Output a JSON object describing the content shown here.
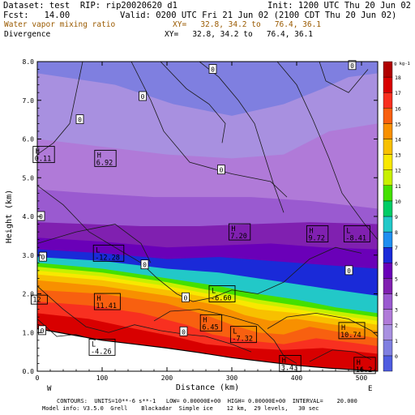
{
  "header": {
    "dataset": "Dataset: test  RIP: rip20020620 d1",
    "init": "Init: 1200 UTC Thu 20 Jun 02",
    "fcst": "Fcst:   14.00",
    "valid": "Valid: 0200 UTC Fri 21 Jun 02 (2100 CDT Thu 20 Jun 02)",
    "field1": "Water vapor mixing ratio",
    "field1_xy": "XY=   32.8, 34.2 to   76.4, 36.1",
    "field2": "Divergence",
    "field2_xy": "XY=   32.8, 34.2 to   76.4, 36.1"
  },
  "footer": {
    "line1": "CONTOURS:  UNITS=10**-6 s**-1   LOW= 0.00000E+00  HIGH= 0.00000E+00  INTERVAL=    20.000",
    "line2": "Model info: V3.5.0  Grell    Blackadar  Simple ice    12 km,  29 levels,   30 sec"
  },
  "colors": {
    "frame": "#000000",
    "band_palette": [
      "#4f5ce0",
      "#7f7fe0",
      "#a890e0",
      "#b07ad8",
      "#9a5ad0",
      "#8020b0",
      "#6a00b8",
      "#1a2ad8",
      "#1e8ef0",
      "#22c8c8",
      "#00cc66",
      "#44e000",
      "#c8f000",
      "#f8e800",
      "#f8c000",
      "#f89000",
      "#f86010",
      "#f83020",
      "#d80000",
      "#b00000"
    ]
  },
  "chart_data": {
    "type": "heatmap",
    "xlabel": "Distance  (km)",
    "ylabel": "Height  (km)",
    "xlim": [
      0,
      525
    ],
    "ylim": [
      0,
      8
    ],
    "x_ticks": [
      "0",
      "100",
      "200",
      "300",
      "400",
      "500"
    ],
    "y_ticks": [
      "0.0",
      "1.0",
      "2.0",
      "3.0",
      "4.0",
      "5.0",
      "6.0",
      "7.0",
      "8.0"
    ],
    "x_end_labels": {
      "left": "W",
      "right": "E"
    },
    "colorbar": {
      "unit": "g kg-1",
      "labels": [
        "0",
        "1",
        "2",
        "3",
        "4",
        "5",
        "6",
        "7",
        "8",
        "9",
        "10",
        "11",
        "12",
        "13",
        "14",
        "15",
        "16",
        "17",
        "18"
      ]
    },
    "mixing_ratio_layers": [
      {
        "value": 0,
        "top": [
          [
            0,
            8
          ],
          [
            525,
            8
          ]
        ]
      },
      {
        "value": 1,
        "top": [
          [
            0,
            7.7
          ],
          [
            120,
            7.4
          ],
          [
            210,
            6.9
          ],
          [
            300,
            6.6
          ],
          [
            380,
            6.9
          ],
          [
            440,
            7.3
          ],
          [
            480,
            7.6
          ],
          [
            525,
            7.7
          ]
        ]
      },
      {
        "value": 2,
        "top": [
          [
            0,
            6.0
          ],
          [
            100,
            5.8
          ],
          [
            200,
            5.6
          ],
          [
            300,
            5.5
          ],
          [
            380,
            5.6
          ],
          [
            450,
            6.2
          ],
          [
            525,
            6.4
          ]
        ]
      },
      {
        "value": 3,
        "top": [
          [
            0,
            4.7
          ],
          [
            80,
            4.6
          ],
          [
            180,
            4.5
          ],
          [
            260,
            4.5
          ],
          [
            330,
            4.5
          ],
          [
            420,
            4.4
          ],
          [
            525,
            4.2
          ]
        ]
      },
      {
        "value": 4,
        "top": [
          [
            0,
            3.85
          ],
          [
            80,
            3.8
          ],
          [
            160,
            3.75
          ],
          [
            250,
            3.75
          ],
          [
            330,
            3.8
          ],
          [
            420,
            3.85
          ],
          [
            525,
            3.8
          ]
        ]
      },
      {
        "value": 5,
        "top": [
          [
            0,
            3.45
          ],
          [
            100,
            3.35
          ],
          [
            200,
            3.2
          ],
          [
            280,
            3.25
          ],
          [
            360,
            3.3
          ],
          [
            440,
            3.2
          ],
          [
            525,
            3.15
          ]
        ]
      },
      {
        "value": 6,
        "top": [
          [
            0,
            3.15
          ],
          [
            100,
            3.05
          ],
          [
            200,
            2.9
          ],
          [
            280,
            2.95
          ],
          [
            360,
            2.85
          ],
          [
            440,
            2.75
          ],
          [
            525,
            2.65
          ]
        ]
      },
      {
        "value": 8,
        "top": [
          [
            0,
            2.95
          ],
          [
            100,
            2.85
          ],
          [
            200,
            2.65
          ],
          [
            280,
            2.55
          ],
          [
            360,
            2.35
          ],
          [
            440,
            2.15
          ],
          [
            525,
            1.95
          ]
        ]
      },
      {
        "value": 10,
        "top": [
          [
            0,
            2.8
          ],
          [
            100,
            2.65
          ],
          [
            200,
            2.4
          ],
          [
            280,
            2.2
          ],
          [
            340,
            2.0
          ],
          [
            400,
            1.85
          ],
          [
            460,
            1.65
          ],
          [
            525,
            1.5
          ]
        ]
      },
      {
        "value": 11,
        "top": [
          [
            0,
            2.7
          ],
          [
            100,
            2.55
          ],
          [
            200,
            2.3
          ],
          [
            280,
            2.05
          ],
          [
            340,
            1.85
          ],
          [
            400,
            1.7
          ],
          [
            460,
            1.55
          ],
          [
            525,
            1.4
          ]
        ]
      },
      {
        "value": 12,
        "top": [
          [
            0,
            2.6
          ],
          [
            100,
            2.45
          ],
          [
            200,
            2.2
          ],
          [
            280,
            1.95
          ],
          [
            340,
            1.75
          ],
          [
            400,
            1.6
          ],
          [
            460,
            1.45
          ],
          [
            525,
            1.3
          ]
        ]
      },
      {
        "value": 13,
        "top": [
          [
            0,
            2.5
          ],
          [
            100,
            2.35
          ],
          [
            200,
            2.1
          ],
          [
            280,
            1.85
          ],
          [
            340,
            1.6
          ],
          [
            400,
            1.5
          ],
          [
            460,
            1.35
          ],
          [
            525,
            1.2
          ]
        ]
      },
      {
        "value": 14,
        "top": [
          [
            0,
            2.35
          ],
          [
            100,
            2.2
          ],
          [
            200,
            1.95
          ],
          [
            280,
            1.7
          ],
          [
            320,
            1.45
          ],
          [
            360,
            1.3
          ],
          [
            400,
            1.35
          ],
          [
            460,
            1.2
          ],
          [
            525,
            1.05
          ]
        ]
      },
      {
        "value": 15,
        "top": [
          [
            0,
            2.1
          ],
          [
            100,
            2.0
          ],
          [
            200,
            1.75
          ],
          [
            260,
            1.45
          ],
          [
            300,
            1.2
          ],
          [
            340,
            1.0
          ],
          [
            380,
            0.95
          ],
          [
            420,
            1.15
          ],
          [
            470,
            1.0
          ],
          [
            525,
            0.85
          ]
        ]
      },
      {
        "value": 16,
        "top": [
          [
            0,
            1.8
          ],
          [
            80,
            1.7
          ],
          [
            160,
            1.5
          ],
          [
            230,
            1.2
          ],
          [
            270,
            0.95
          ],
          [
            320,
            0.8
          ],
          [
            380,
            0.7
          ],
          [
            430,
            0.85
          ],
          [
            480,
            0.75
          ],
          [
            525,
            0.65
          ]
        ]
      },
      {
        "value": 17,
        "top": [
          [
            0,
            1.5
          ],
          [
            80,
            1.35
          ],
          [
            150,
            1.1
          ],
          [
            210,
            0.9
          ],
          [
            260,
            0.7
          ],
          [
            320,
            0.6
          ],
          [
            380,
            0.55
          ],
          [
            440,
            0.6
          ],
          [
            525,
            0.45
          ]
        ]
      }
    ],
    "terrain": [
      [
        0,
        1.1
      ],
      [
        50,
        0.95
      ],
      [
        100,
        0.8
      ],
      [
        150,
        0.7
      ],
      [
        200,
        0.6
      ],
      [
        250,
        0.48
      ],
      [
        300,
        0.35
      ],
      [
        350,
        0.25
      ],
      [
        400,
        0.15
      ],
      [
        450,
        0.08
      ],
      [
        525,
        0.0
      ]
    ],
    "annotations": [
      {
        "marker": "H",
        "value": "0.11",
        "x": 10,
        "y": 5.6
      },
      {
        "marker": "H",
        "value": "6.92",
        "x": 105,
        "y": 5.5
      },
      {
        "marker": "H",
        "value": "7.20",
        "x": 312,
        "y": 3.6
      },
      {
        "marker": "H",
        "value": "9.72",
        "x": 432,
        "y": 3.55
      },
      {
        "marker": "L",
        "value": "-8.41",
        "x": 493,
        "y": 3.55
      },
      {
        "marker": "L",
        "value": "-12.28",
        "x": 110,
        "y": 3.05
      },
      {
        "marker": "L",
        "value": "-6.60",
        "x": 285,
        "y": 2.0
      },
      {
        "marker": "H",
        "value": "11.41",
        "x": 108,
        "y": 1.8
      },
      {
        "marker": "H",
        "value": "6.45",
        "x": 268,
        "y": 1.25
      },
      {
        "marker": "L",
        "value": "-7.32",
        "x": 318,
        "y": 0.95
      },
      {
        "marker": "H",
        "value": "10.74",
        "x": 485,
        "y": 1.05
      },
      {
        "marker": "L",
        "value": "-4.26",
        "x": 100,
        "y": 0.62
      },
      {
        "marker": "H",
        "value": "3.43",
        "x": 390,
        "y": 0.2
      },
      {
        "marker": "H",
        "value": "16.2",
        "x": 505,
        "y": 0.15
      },
      {
        "marker": "",
        "value": "12",
        "x": 3,
        "y": 1.85
      }
    ],
    "contour_labels": [
      {
        "value": "0",
        "x": 270,
        "y": 7.8
      },
      {
        "value": "0",
        "x": 485,
        "y": 7.9
      },
      {
        "value": "0",
        "x": 162,
        "y": 7.1
      },
      {
        "value": "0",
        "x": 65,
        "y": 6.5
      },
      {
        "value": "0",
        "x": 283,
        "y": 5.2
      },
      {
        "value": "0",
        "x": 5,
        "y": 4.0
      },
      {
        "value": "0",
        "x": 8,
        "y": 2.95
      },
      {
        "value": "0",
        "x": 165,
        "y": 2.75
      },
      {
        "value": "0",
        "x": 480,
        "y": 2.6
      },
      {
        "value": "0",
        "x": 228,
        "y": 1.9
      },
      {
        "value": "0",
        "x": 225,
        "y": 1.02
      },
      {
        "value": "0",
        "x": 7,
        "y": 1.05
      }
    ],
    "divergence_contours": [
      [
        [
          70,
          8
        ],
        [
          60,
          7.2
        ],
        [
          50,
          6.4
        ],
        [
          25,
          5.9
        ],
        [
          0,
          5.6
        ]
      ],
      [
        [
          145,
          8
        ],
        [
          175,
          7.0
        ],
        [
          195,
          6.2
        ],
        [
          235,
          5.4
        ],
        [
          300,
          5.1
        ],
        [
          360,
          4.9
        ],
        [
          385,
          4.5
        ]
      ],
      [
        [
          190,
          8
        ],
        [
          230,
          7.3
        ],
        [
          265,
          6.9
        ],
        [
          290,
          6.4
        ],
        [
          285,
          5.9
        ]
      ],
      [
        [
          250,
          8
        ],
        [
          280,
          7.6
        ],
        [
          310,
          7.0
        ],
        [
          335,
          6.4
        ],
        [
          350,
          5.6
        ],
        [
          365,
          4.8
        ],
        [
          380,
          4.1
        ]
      ],
      [
        [
          370,
          8
        ],
        [
          400,
          7.4
        ],
        [
          425,
          6.5
        ],
        [
          450,
          5.5
        ],
        [
          470,
          4.6
        ],
        [
          505,
          3.8
        ],
        [
          525,
          3.4
        ]
      ],
      [
        [
          435,
          8
        ],
        [
          445,
          7.5
        ],
        [
          480,
          7.2
        ],
        [
          510,
          7.8
        ]
      ],
      [
        [
          0,
          4.8
        ],
        [
          40,
          4.3
        ],
        [
          80,
          3.6
        ],
        [
          130,
          3.1
        ],
        [
          160,
          2.8
        ],
        [
          185,
          2.4
        ],
        [
          215,
          2.0
        ],
        [
          240,
          1.8
        ],
        [
          270,
          1.9
        ],
        [
          300,
          2.1
        ],
        [
          340,
          2.0
        ],
        [
          380,
          2.3
        ],
        [
          420,
          2.9
        ],
        [
          460,
          3.2
        ],
        [
          500,
          3.05
        ]
      ],
      [
        [
          0,
          3.3
        ],
        [
          60,
          3.6
        ],
        [
          120,
          3.8
        ],
        [
          160,
          3.3
        ],
        [
          175,
          2.8
        ]
      ],
      [
        [
          0,
          2.2
        ],
        [
          40,
          1.6
        ],
        [
          75,
          1.15
        ],
        [
          110,
          1.0
        ],
        [
          150,
          1.2
        ],
        [
          190,
          1.05
        ],
        [
          230,
          0.95
        ],
        [
          260,
          0.9
        ],
        [
          300,
          0.7
        ],
        [
          330,
          0.5
        ]
      ],
      [
        [
          180,
          1.3
        ],
        [
          205,
          1.55
        ],
        [
          250,
          1.6
        ],
        [
          300,
          1.4
        ],
        [
          340,
          1.2
        ],
        [
          365,
          0.8
        ],
        [
          380,
          0.4
        ],
        [
          400,
          0.2
        ]
      ],
      [
        [
          355,
          1.1
        ],
        [
          385,
          1.4
        ],
        [
          430,
          1.5
        ],
        [
          480,
          1.35
        ],
        [
          515,
          1.05
        ],
        [
          525,
          0.9
        ]
      ],
      [
        [
          420,
          0.25
        ],
        [
          455,
          0.55
        ],
        [
          490,
          0.5
        ],
        [
          515,
          0.3
        ]
      ],
      [
        [
          0,
          1.35
        ],
        [
          30,
          0.9
        ],
        [
          60,
          0.95
        ],
        [
          90,
          0.8
        ]
      ]
    ]
  }
}
